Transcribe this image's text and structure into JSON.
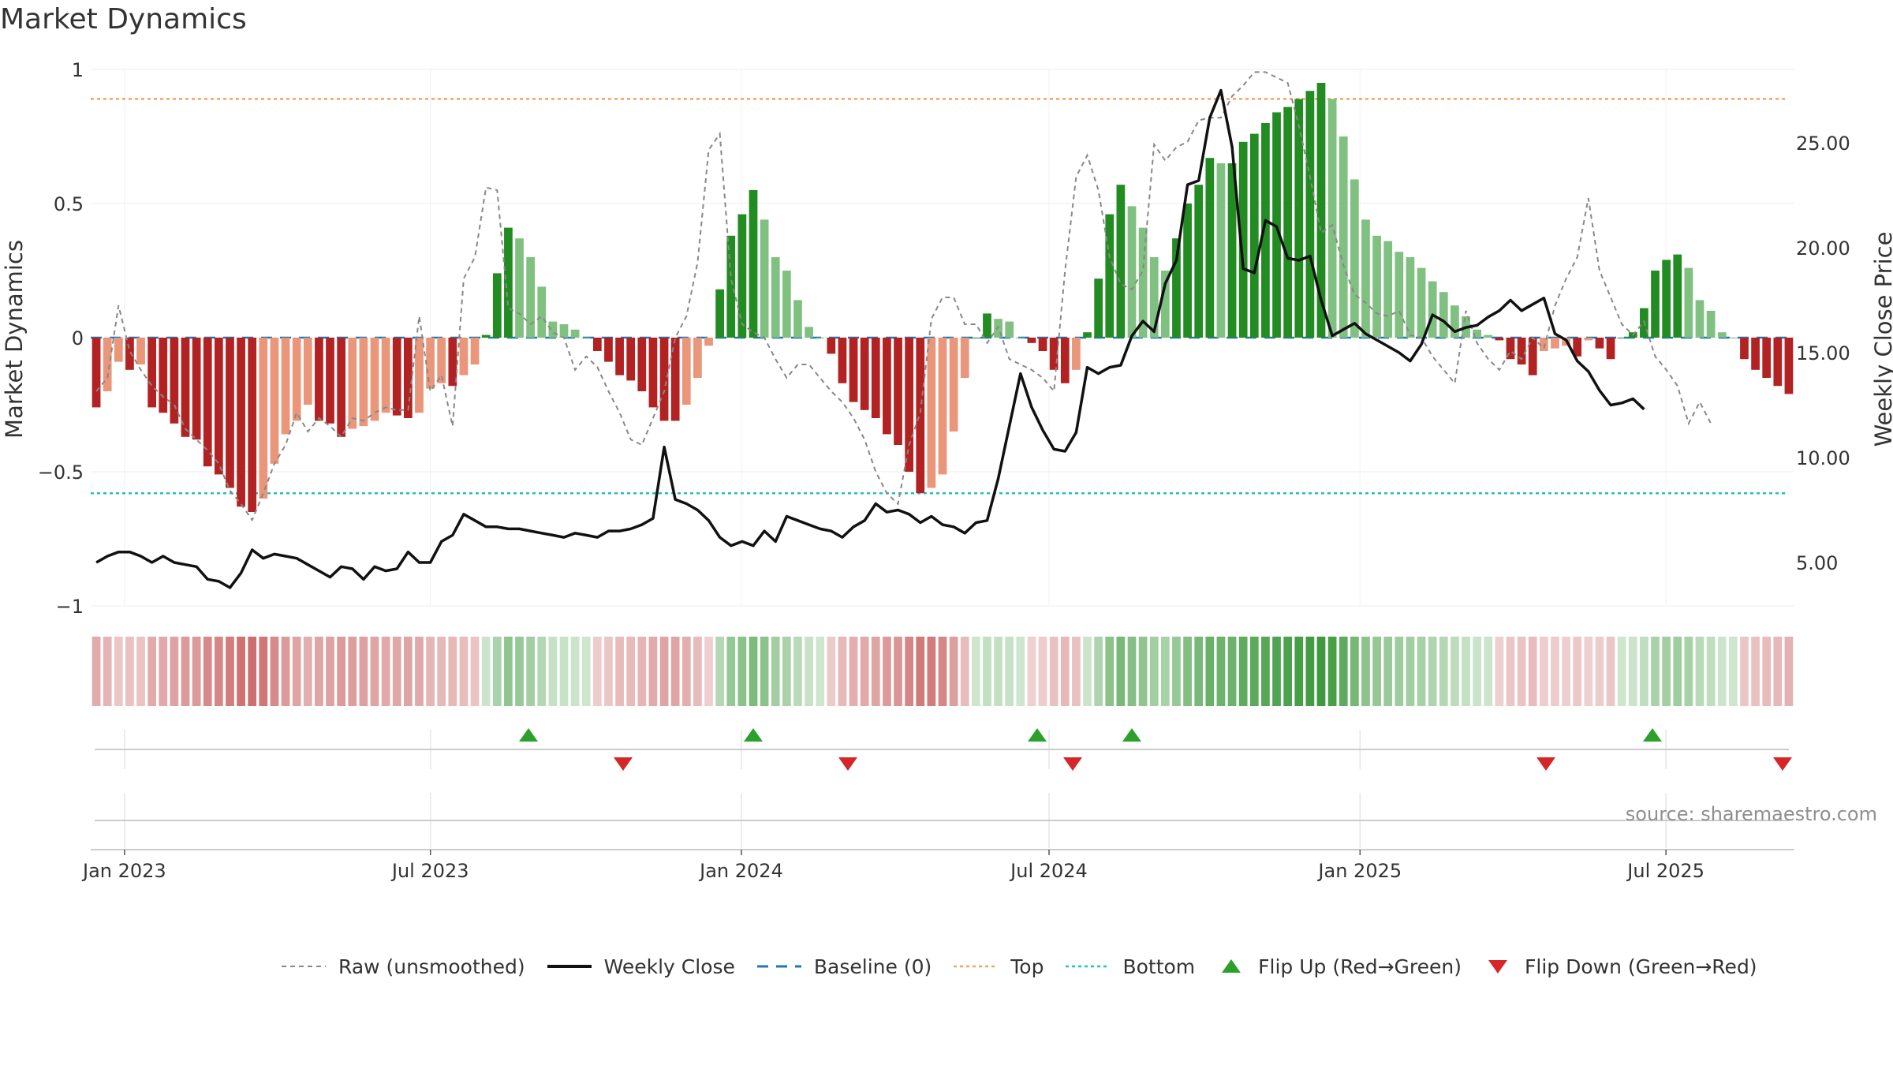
{
  "chart_data": {
    "type": "bar",
    "title": "Market Dynamics",
    "source": "source: sharemaestro.com",
    "left_axis": {
      "label": "Market Dynamics",
      "range": [
        -1,
        1
      ],
      "ticks": [
        1,
        0.5,
        0,
        -0.5,
        -1
      ],
      "tick_labels": [
        "1",
        "0.5",
        "0",
        "−0.5",
        "−1"
      ]
    },
    "right_axis": {
      "label": "Weekly Close Price",
      "ticks": [
        25,
        20,
        15,
        10,
        5
      ],
      "tick_labels": [
        "25.00",
        "20.00",
        "15.00",
        "10.00",
        "5.00"
      ]
    },
    "x_axis": {
      "start": "2022-12-12",
      "end": "2025-09-15",
      "ticks": [
        "2023-01-01",
        "2023-07-01",
        "2024-01-01",
        "2024-07-01",
        "2025-01-01",
        "2025-07-01"
      ],
      "tick_labels": [
        "Jan 2023",
        "Jul 2023",
        "Jan 2024",
        "Jul 2024",
        "Jan 2025",
        "Jul 2025"
      ]
    },
    "grid": true,
    "legend_position": "bottom",
    "reference_lines": {
      "baseline": 0,
      "top": 0.89,
      "bottom": -0.58
    },
    "series": [
      {
        "name": "Market Dynamics (bars)",
        "start_date": "2022-12-12",
        "interval": "weekly",
        "values": [
          -0.26,
          -0.2,
          -0.09,
          -0.12,
          -0.1,
          -0.26,
          -0.28,
          -0.32,
          -0.37,
          -0.38,
          -0.48,
          -0.51,
          -0.56,
          -0.63,
          -0.65,
          -0.6,
          -0.47,
          -0.36,
          -0.31,
          -0.25,
          -0.31,
          -0.32,
          -0.37,
          -0.34,
          -0.33,
          -0.31,
          -0.28,
          -0.29,
          -0.3,
          -0.28,
          -0.19,
          -0.17,
          -0.18,
          -0.14,
          -0.1,
          0.01,
          0.24,
          0.41,
          0.37,
          0.3,
          0.19,
          0.06,
          0.05,
          0.03,
          0.0,
          -0.05,
          -0.09,
          -0.14,
          -0.16,
          -0.2,
          -0.26,
          -0.31,
          -0.31,
          -0.25,
          -0.15,
          -0.03,
          0.18,
          0.38,
          0.46,
          0.55,
          0.44,
          0.3,
          0.25,
          0.14,
          0.04,
          0.0,
          -0.06,
          -0.17,
          -0.24,
          -0.27,
          -0.3,
          -0.36,
          -0.4,
          -0.5,
          -0.58,
          -0.56,
          -0.51,
          -0.35,
          -0.15,
          0.0,
          0.09,
          0.07,
          0.06,
          0.0,
          -0.02,
          -0.05,
          -0.12,
          -0.17,
          -0.12,
          0.02,
          0.22,
          0.46,
          0.57,
          0.49,
          0.41,
          0.3,
          0.25,
          0.37,
          0.5,
          0.57,
          0.67,
          0.65,
          0.65,
          0.73,
          0.76,
          0.8,
          0.84,
          0.86,
          0.89,
          0.92,
          0.95,
          0.89,
          0.75,
          0.59,
          0.44,
          0.38,
          0.36,
          0.32,
          0.3,
          0.26,
          0.21,
          0.17,
          0.12,
          0.08,
          0.03,
          0.01,
          -0.01,
          -0.08,
          -0.1,
          -0.14,
          -0.05,
          -0.04,
          -0.03,
          -0.07,
          -0.01,
          -0.04,
          -0.08,
          0.0,
          0.02,
          0.11,
          0.25,
          0.29,
          0.31,
          0.26,
          0.14,
          0.1,
          0.02,
          0.0,
          -0.08,
          -0.12,
          -0.15,
          -0.18,
          -0.21
        ]
      },
      {
        "name": "Raw (unsmoothed)",
        "start_date": "2022-12-12",
        "interval": "weekly",
        "values": [
          -0.2,
          -0.15,
          0.12,
          -0.05,
          -0.12,
          -0.18,
          -0.22,
          -0.25,
          -0.34,
          -0.38,
          -0.42,
          -0.47,
          -0.57,
          -0.62,
          -0.68,
          -0.58,
          -0.47,
          -0.4,
          -0.28,
          -0.35,
          -0.3,
          -0.33,
          -0.37,
          -0.3,
          -0.31,
          -0.28,
          -0.26,
          -0.27,
          -0.27,
          0.08,
          -0.2,
          -0.14,
          -0.33,
          0.22,
          0.3,
          0.56,
          0.55,
          0.11,
          0.09,
          0.05,
          0.08,
          0.02,
          0.0,
          -0.12,
          -0.07,
          -0.11,
          -0.2,
          -0.28,
          -0.38,
          -0.4,
          -0.3,
          -0.2,
          0.0,
          0.08,
          0.28,
          0.7,
          0.76,
          0.22,
          0.05,
          0.02,
          0.0,
          -0.08,
          -0.15,
          -0.1,
          -0.1,
          -0.15,
          -0.2,
          -0.24,
          -0.3,
          -0.38,
          -0.5,
          -0.58,
          -0.62,
          -0.4,
          -0.28,
          0.07,
          0.15,
          0.15,
          0.05,
          0.05,
          -0.02,
          0.04,
          -0.08,
          -0.1,
          -0.12,
          -0.15,
          -0.2,
          0.25,
          0.6,
          0.68,
          0.55,
          0.3,
          0.2,
          0.18,
          0.25,
          0.72,
          0.66,
          0.71,
          0.73,
          0.81,
          0.82,
          0.82,
          0.9,
          0.94,
          0.99,
          0.99,
          0.97,
          0.95,
          0.79,
          0.6,
          0.39,
          0.42,
          0.27,
          0.16,
          0.13,
          0.09,
          0.08,
          0.1,
          0.01,
          0.0,
          -0.07,
          -0.12,
          -0.17,
          0.1,
          -0.02,
          -0.08,
          -0.12,
          -0.05,
          -0.08,
          0.0,
          -0.04,
          0.12,
          0.22,
          0.3,
          0.52,
          0.25,
          0.15,
          0.05,
          0.01,
          0.06,
          -0.07,
          -0.12,
          -0.18,
          -0.32,
          -0.24,
          -0.32
        ]
      },
      {
        "name": "Weekly Close",
        "axis": "right",
        "start_date": "2022-12-12",
        "interval": "weekly",
        "values": [
          5.0,
          5.3,
          5.5,
          5.5,
          5.3,
          5.0,
          5.3,
          5.0,
          4.9,
          4.8,
          4.2,
          4.1,
          3.8,
          4.5,
          5.6,
          5.2,
          5.4,
          5.3,
          5.2,
          4.9,
          4.6,
          4.3,
          4.8,
          4.7,
          4.2,
          4.8,
          4.6,
          4.7,
          5.5,
          5.0,
          5.0,
          6.0,
          6.3,
          7.3,
          7.0,
          6.7,
          6.7,
          6.6,
          6.6,
          6.5,
          6.4,
          6.3,
          6.2,
          6.4,
          6.3,
          6.2,
          6.5,
          6.5,
          6.6,
          6.8,
          7.1,
          10.5,
          8.0,
          7.8,
          7.5,
          7.0,
          6.2,
          5.8,
          6.0,
          5.8,
          6.5,
          6.0,
          7.2,
          7.0,
          6.8,
          6.6,
          6.5,
          6.2,
          6.7,
          7.0,
          7.8,
          7.4,
          7.5,
          7.3,
          6.9,
          7.2,
          6.8,
          6.7,
          6.4,
          6.9,
          7.0,
          9.0,
          11.5,
          14.0,
          12.4,
          11.3,
          10.4,
          10.3,
          11.2,
          14.3,
          14.0,
          14.3,
          14.4,
          15.8,
          16.5,
          16.0,
          18.3,
          19.4,
          23.0,
          23.2,
          26.2,
          27.5,
          24.8,
          19.0,
          18.8,
          21.3,
          21.0,
          19.5,
          19.4,
          19.6,
          17.5,
          15.8,
          16.1,
          16.4,
          15.9,
          15.6,
          15.3,
          15.0,
          14.6,
          15.4,
          16.8,
          16.5,
          16.0,
          16.2,
          16.3,
          16.7,
          17.0,
          17.5,
          17.0,
          17.3,
          17.6,
          15.9,
          15.6,
          14.6,
          14.1,
          13.2,
          12.5,
          12.6,
          12.8,
          12.3
        ]
      }
    ],
    "flip_up_dates": [
      "2023-08-28",
      "2024-01-08",
      "2024-06-24",
      "2024-08-19",
      "2025-06-23"
    ],
    "flip_down_dates": [
      "2023-10-23",
      "2024-03-04",
      "2024-07-15",
      "2025-04-21",
      "2025-09-08"
    ]
  },
  "legend": {
    "raw": "Raw (unsmoothed)",
    "close": "Weekly Close",
    "baseline": "Baseline (0)",
    "top": "Top",
    "bottom": "Bottom",
    "flip_up": "Flip Up (Red→Green)",
    "flip_down": "Flip Down (Green→Red)"
  },
  "colors": {
    "strong_green": "#228b22",
    "light_green": "#80c080",
    "strong_red": "#b22222",
    "light_red": "#e9967a",
    "raw": "#888888",
    "close": "#111111",
    "baseline": "#1f77b4",
    "top": "#f4a460",
    "bottom": "#20c0c0",
    "flip_up": "#2ca02c",
    "flip_down": "#d62728"
  }
}
